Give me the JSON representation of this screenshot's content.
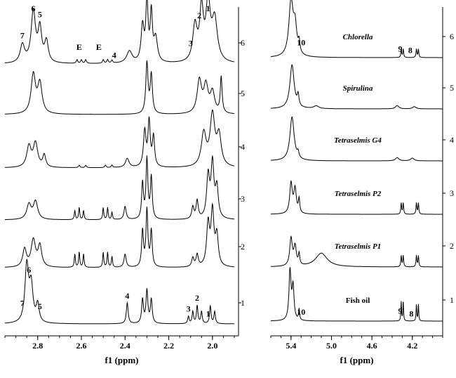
{
  "chart_data": [
    {
      "type": "line",
      "xlabel": "f1 (ppm)",
      "xlim": [
        2.95,
        1.9
      ],
      "x_reversed": true,
      "x_ticks": [
        "2.8",
        "2.6",
        "2.4",
        "2.2",
        "2.0"
      ],
      "x_tick_values": [
        2.8,
        2.6,
        2.4,
        2.2,
        2.0
      ],
      "trace_index_labels": [
        "6",
        "5",
        "4",
        "3",
        "2",
        "1"
      ],
      "peak_labels": [
        {
          "text": "6",
          "x": 2.82,
          "trace": 6
        },
        {
          "text": "5",
          "x": 2.79,
          "trace": 6
        },
        {
          "text": "7",
          "x": 2.87,
          "trace": 6
        },
        {
          "text": "E",
          "x": 2.61,
          "trace": 6
        },
        {
          "text": "E",
          "x": 2.52,
          "trace": 6
        },
        {
          "text": "4",
          "x": 2.45,
          "trace": 6
        },
        {
          "text": "2",
          "x": 2.06,
          "trace": 6
        },
        {
          "text": "1",
          "x": 2.02,
          "trace": 6
        },
        {
          "text": "3",
          "x": 2.1,
          "trace": 6
        },
        {
          "text": "7",
          "x": 2.87,
          "trace": 1
        },
        {
          "text": "6",
          "x": 2.84,
          "trace": 1
        },
        {
          "text": "5",
          "x": 2.79,
          "trace": 1
        },
        {
          "text": "4",
          "x": 2.39,
          "trace": 1
        },
        {
          "text": "2",
          "x": 2.07,
          "trace": 1
        },
        {
          "text": "1",
          "x": 2.02,
          "trace": 1
        },
        {
          "text": "3",
          "x": 2.11,
          "trace": 1
        }
      ],
      "series": [
        {
          "trace": 6,
          "peaks": [
            [
              2.87,
              0.3,
              0.012
            ],
            [
              2.82,
              0.85,
              0.012
            ],
            [
              2.79,
              0.55,
              0.01
            ],
            [
              2.76,
              0.35,
              0.01
            ],
            [
              2.62,
              0.06,
              0.004
            ],
            [
              2.6,
              0.06,
              0.004
            ],
            [
              2.58,
              0.06,
              0.004
            ],
            [
              2.5,
              0.06,
              0.004
            ],
            [
              2.48,
              0.06,
              0.004
            ],
            [
              2.46,
              0.05,
              0.004
            ],
            [
              2.38,
              0.2,
              0.015
            ],
            [
              2.32,
              0.6,
              0.008
            ],
            [
              2.3,
              1.0,
              0.006
            ],
            [
              2.28,
              0.8,
              0.006
            ],
            [
              2.26,
              0.4,
              0.01
            ],
            [
              2.08,
              0.6,
              0.012
            ],
            [
              2.05,
              0.85,
              0.01
            ],
            [
              2.02,
              0.95,
              0.012
            ],
            [
              1.99,
              0.7,
              0.015
            ]
          ]
        },
        {
          "trace": 5,
          "peaks": [
            [
              2.82,
              0.65,
              0.012
            ],
            [
              2.79,
              0.5,
              0.012
            ],
            [
              2.3,
              0.85,
              0.006
            ],
            [
              2.28,
              0.65,
              0.006
            ],
            [
              2.06,
              0.55,
              0.012
            ],
            [
              2.03,
              0.45,
              0.012
            ],
            [
              2.0,
              0.35,
              0.012
            ],
            [
              1.96,
              0.6,
              0.005
            ]
          ]
        },
        {
          "trace": 4,
          "peaks": [
            [
              2.84,
              0.35,
              0.012
            ],
            [
              2.81,
              0.4,
              0.012
            ],
            [
              2.77,
              0.2,
              0.008
            ],
            [
              2.61,
              0.04,
              0.004
            ],
            [
              2.58,
              0.04,
              0.004
            ],
            [
              2.49,
              0.04,
              0.004
            ],
            [
              2.46,
              0.04,
              0.004
            ],
            [
              2.39,
              0.15,
              0.01
            ],
            [
              2.31,
              0.6,
              0.007
            ],
            [
              2.29,
              0.75,
              0.006
            ],
            [
              2.27,
              0.5,
              0.006
            ],
            [
              2.04,
              0.55,
              0.013
            ],
            [
              2.0,
              0.85,
              0.013
            ],
            [
              1.97,
              0.5,
              0.012
            ]
          ]
        },
        {
          "trace": 3,
          "peaks": [
            [
              2.84,
              0.25,
              0.012
            ],
            [
              2.81,
              0.3,
              0.012
            ],
            [
              2.63,
              0.15,
              0.003
            ],
            [
              2.61,
              0.2,
              0.003
            ],
            [
              2.59,
              0.15,
              0.003
            ],
            [
              2.5,
              0.2,
              0.003
            ],
            [
              2.48,
              0.2,
              0.003
            ],
            [
              2.46,
              0.12,
              0.003
            ],
            [
              2.4,
              0.22,
              0.006
            ],
            [
              2.32,
              0.6,
              0.005
            ],
            [
              2.3,
              1.0,
              0.005
            ],
            [
              2.28,
              0.7,
              0.005
            ],
            [
              2.09,
              0.2,
              0.006
            ],
            [
              2.07,
              0.3,
              0.006
            ],
            [
              2.02,
              0.7,
              0.008
            ],
            [
              2.0,
              0.9,
              0.008
            ],
            [
              1.98,
              0.5,
              0.008
            ]
          ]
        },
        {
          "trace": 2,
          "peaks": [
            [
              2.86,
              0.3,
              0.01
            ],
            [
              2.82,
              0.45,
              0.012
            ],
            [
              2.79,
              0.35,
              0.01
            ],
            [
              2.63,
              0.22,
              0.003
            ],
            [
              2.61,
              0.25,
              0.003
            ],
            [
              2.59,
              0.22,
              0.003
            ],
            [
              2.5,
              0.25,
              0.003
            ],
            [
              2.48,
              0.25,
              0.003
            ],
            [
              2.46,
              0.18,
              0.003
            ],
            [
              2.4,
              0.22,
              0.006
            ],
            [
              2.32,
              0.6,
              0.005
            ],
            [
              2.3,
              0.95,
              0.005
            ],
            [
              2.28,
              0.6,
              0.005
            ],
            [
              2.09,
              0.15,
              0.006
            ],
            [
              2.07,
              0.2,
              0.006
            ],
            [
              2.02,
              0.7,
              0.008
            ],
            [
              2.0,
              0.9,
              0.008
            ],
            [
              1.98,
              0.5,
              0.008
            ]
          ]
        },
        {
          "trace": 1,
          "peaks": [
            [
              2.85,
              0.95,
              0.01
            ],
            [
              2.83,
              0.6,
              0.01
            ],
            [
              2.8,
              0.3,
              0.008
            ],
            [
              2.39,
              0.35,
              0.005
            ],
            [
              2.32,
              0.4,
              0.005
            ],
            [
              2.3,
              0.55,
              0.005
            ],
            [
              2.28,
              0.4,
              0.005
            ],
            [
              2.11,
              0.12,
              0.004
            ],
            [
              2.09,
              0.2,
              0.004
            ],
            [
              2.07,
              0.3,
              0.004
            ],
            [
              2.05,
              0.2,
              0.004
            ],
            [
              2.01,
              0.3,
              0.004
            ],
            [
              1.99,
              0.2,
              0.004
            ]
          ]
        }
      ]
    },
    {
      "type": "line",
      "xlabel": "f1 (ppm)",
      "xlim": [
        5.6,
        3.9
      ],
      "x_reversed": true,
      "x_ticks": [
        "5.4",
        "5.0",
        "4.6",
        "4.2"
      ],
      "x_tick_values": [
        5.4,
        5.0,
        4.6,
        4.2
      ],
      "trace_index_labels": [
        "6",
        "5",
        "4",
        "3",
        "2",
        "1"
      ],
      "sample_labels": [
        {
          "text": "Chlorella",
          "trace": 6,
          "italic": true
        },
        {
          "text": "Spirulina",
          "trace": 5,
          "italic": true
        },
        {
          "text": "Tetraselmis G4",
          "trace": 4,
          "italic": true
        },
        {
          "text": "Tetraselmis P2",
          "trace": 3,
          "italic": true
        },
        {
          "text": "Tetraselmis P1",
          "trace": 2,
          "italic": true
        },
        {
          "text": "Fish oil",
          "trace": 1,
          "italic": false
        }
      ],
      "peak_labels": [
        {
          "text": "10",
          "x": 5.3,
          "trace": 6
        },
        {
          "text": "9",
          "x": 4.32,
          "trace": 6
        },
        {
          "text": "8",
          "x": 4.22,
          "trace": 6
        },
        {
          "text": "10",
          "x": 5.3,
          "trace": 1
        },
        {
          "text": "9",
          "x": 4.32,
          "trace": 1
        },
        {
          "text": "8",
          "x": 4.21,
          "trace": 1
        }
      ],
      "series": [
        {
          "trace": 6,
          "peaks": [
            [
              5.4,
              1.0,
              0.025
            ],
            [
              5.36,
              0.5,
              0.02
            ],
            [
              5.32,
              0.2,
              0.01
            ],
            [
              4.31,
              0.15,
              0.005
            ],
            [
              4.29,
              0.15,
              0.005
            ],
            [
              4.16,
              0.15,
              0.005
            ],
            [
              4.14,
              0.15,
              0.005
            ]
          ]
        },
        {
          "trace": 5,
          "peaks": [
            [
              5.39,
              0.8,
              0.025
            ],
            [
              5.33,
              0.2,
              0.01
            ],
            [
              5.15,
              0.05,
              0.03
            ],
            [
              4.35,
              0.06,
              0.02
            ],
            [
              4.18,
              0.04,
              0.02
            ]
          ]
        },
        {
          "trace": 4,
          "peaks": [
            [
              5.39,
              0.8,
              0.025
            ],
            [
              5.33,
              0.1,
              0.01
            ],
            [
              4.35,
              0.06,
              0.02
            ],
            [
              4.2,
              0.05,
              0.02
            ]
          ]
        },
        {
          "trace": 3,
          "peaks": [
            [
              5.4,
              0.55,
              0.015
            ],
            [
              5.36,
              0.45,
              0.015
            ],
            [
              5.32,
              0.25,
              0.008
            ],
            [
              4.31,
              0.2,
              0.005
            ],
            [
              4.29,
              0.2,
              0.005
            ],
            [
              4.16,
              0.2,
              0.005
            ],
            [
              4.14,
              0.2,
              0.005
            ]
          ]
        },
        {
          "trace": 2,
          "peaks": [
            [
              5.4,
              0.5,
              0.015
            ],
            [
              5.36,
              0.35,
              0.015
            ],
            [
              5.32,
              0.2,
              0.008
            ],
            [
              5.1,
              0.25,
              0.07
            ],
            [
              4.31,
              0.2,
              0.005
            ],
            [
              4.29,
              0.2,
              0.005
            ],
            [
              4.16,
              0.2,
              0.005
            ],
            [
              4.14,
              0.2,
              0.005
            ]
          ]
        },
        {
          "trace": 1,
          "peaks": [
            [
              5.41,
              0.9,
              0.012
            ],
            [
              5.38,
              0.6,
              0.012
            ],
            [
              5.32,
              0.2,
              0.006
            ],
            [
              4.31,
              0.35,
              0.004
            ],
            [
              4.29,
              0.35,
              0.004
            ],
            [
              4.16,
              0.3,
              0.004
            ],
            [
              4.14,
              0.3,
              0.004
            ]
          ]
        }
      ]
    }
  ]
}
